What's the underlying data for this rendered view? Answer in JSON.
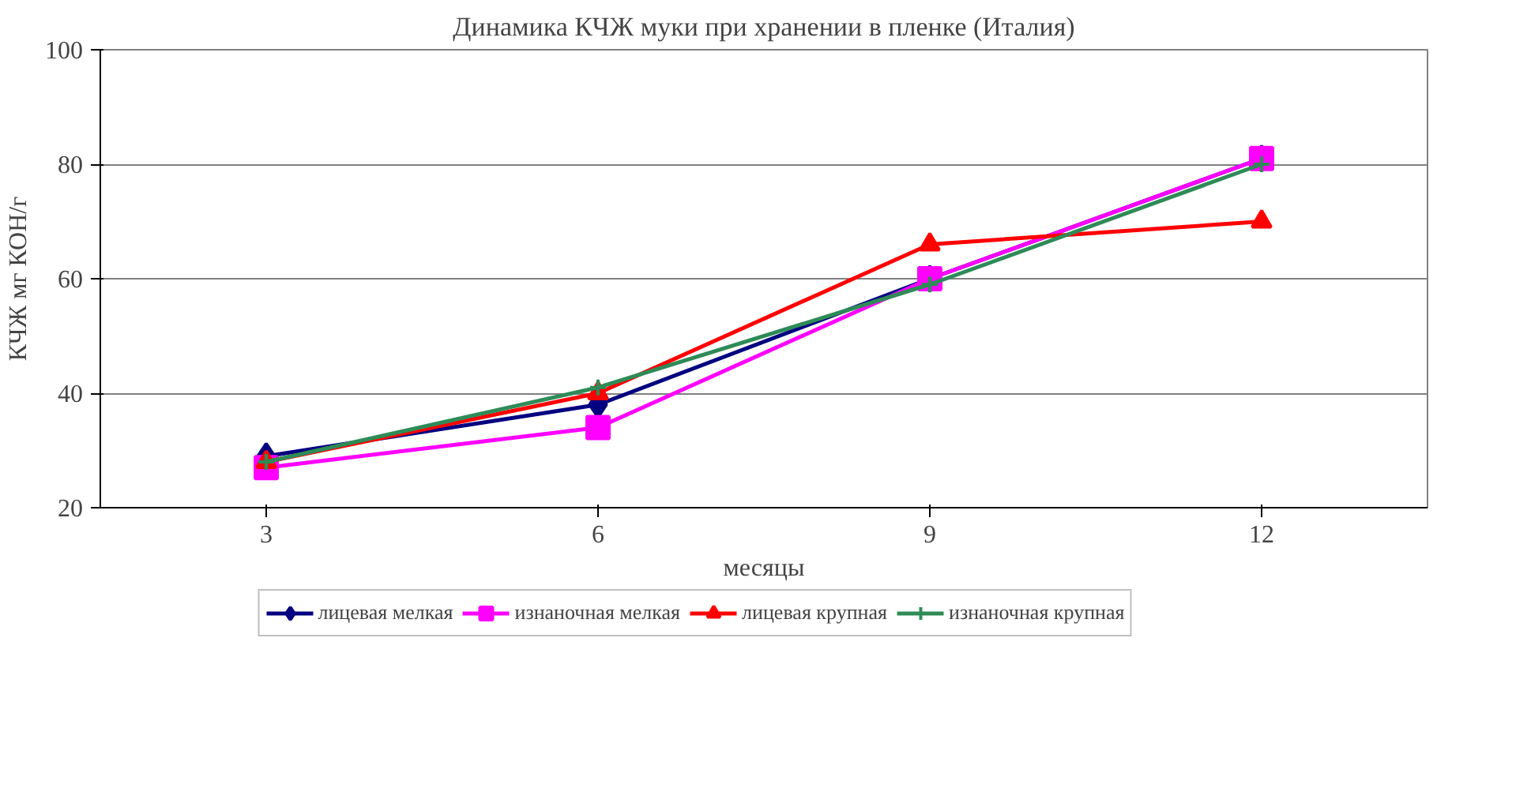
{
  "chart_data": {
    "type": "line",
    "title": "Динамика КЧЖ муки при хранении в пленке (Италия)",
    "xlabel": "месяцы",
    "ylabel": "КЧЖ мг КОН/г",
    "categories": [
      "3",
      "6",
      "9",
      "12"
    ],
    "ylim": [
      20,
      100
    ],
    "yticks": [
      20,
      40,
      60,
      80,
      100
    ],
    "grid": "y",
    "legend": "bottom",
    "series": [
      {
        "name": "лицевая мелкая",
        "color": "#000080",
        "marker": "diamond",
        "values": [
          29,
          38,
          60,
          81
        ]
      },
      {
        "name": "изнаночная мелкая",
        "color": "#ff00ff",
        "marker": "square",
        "values": [
          27,
          34,
          60,
          81
        ]
      },
      {
        "name": "лицевая крупная",
        "color": "#ff0000",
        "marker": "triangle",
        "values": [
          28,
          40,
          66,
          70
        ]
      },
      {
        "name": "изнаночная крупная",
        "color": "#2e8b57",
        "marker": "cross",
        "values": [
          28,
          41,
          59,
          80
        ]
      }
    ]
  }
}
